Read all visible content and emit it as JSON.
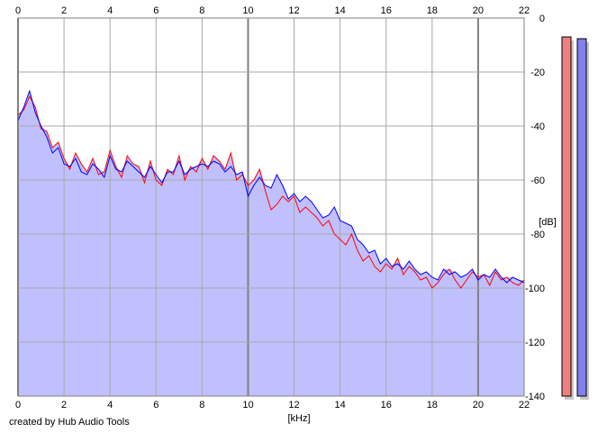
{
  "credit": "created by Hub Audio Tools",
  "chart_data": {
    "type": "area",
    "xlabel": "[kHz]",
    "ylabel": "[dB]",
    "xlim": [
      0,
      22
    ],
    "ylim": [
      -140,
      0
    ],
    "xticks": [
      0,
      2,
      4,
      6,
      8,
      10,
      12,
      14,
      16,
      18,
      20,
      22
    ],
    "yticks": [
      0,
      -20,
      -40,
      -60,
      -80,
      -100,
      -120,
      -140
    ],
    "grid": true,
    "fill_color": "#c0c0ff",
    "series": [
      {
        "color": "#ff0000",
        "x": [
          0,
          0.25,
          0.5,
          0.75,
          1,
          1.25,
          1.5,
          1.75,
          2,
          2.25,
          2.5,
          2.75,
          3,
          3.25,
          3.5,
          3.75,
          4,
          4.25,
          4.5,
          4.75,
          5,
          5.25,
          5.5,
          5.75,
          6,
          6.25,
          6.5,
          6.75,
          7,
          7.25,
          7.5,
          7.75,
          8,
          8.25,
          8.5,
          8.75,
          9,
          9.25,
          9.5,
          9.75,
          10,
          10.25,
          10.5,
          10.75,
          11,
          11.25,
          11.5,
          11.75,
          12,
          12.25,
          12.5,
          12.75,
          13,
          13.25,
          13.5,
          13.75,
          14,
          14.25,
          14.5,
          14.75,
          15,
          15.25,
          15.5,
          15.75,
          16,
          16.25,
          16.5,
          16.75,
          17,
          17.25,
          17.5,
          17.75,
          18,
          18.25,
          18.5,
          18.75,
          19,
          19.25,
          19.5,
          19.75,
          20,
          20.25,
          20.5,
          20.75,
          21,
          21.25,
          21.5,
          21.75,
          22
        ],
        "values": [
          -36,
          -34,
          -29,
          -33,
          -41,
          -42,
          -48,
          -46,
          -52,
          -56,
          -50,
          -54,
          -57,
          -52,
          -58,
          -57,
          -49,
          -55,
          -59,
          -51,
          -54,
          -55,
          -61,
          -53,
          -60,
          -62,
          -56,
          -58,
          -51,
          -60,
          -55,
          -57,
          -52,
          -56,
          -51,
          -53,
          -56,
          -50,
          -60,
          -58,
          -62,
          -60,
          -56,
          -64,
          -71,
          -69,
          -66,
          -68,
          -66,
          -72,
          -70,
          -72,
          -74,
          -77,
          -75,
          -80,
          -82,
          -84,
          -80,
          -86,
          -90,
          -88,
          -92,
          -94,
          -91,
          -93,
          -89,
          -95,
          -92,
          -94,
          -97,
          -96,
          -100,
          -98,
          -95,
          -93,
          -97,
          -100,
          -97,
          -94,
          -96,
          -95,
          -99,
          -94,
          -97,
          -96,
          -98,
          -99,
          -97
        ]
      },
      {
        "color": "#0000ff",
        "x": [
          0,
          0.25,
          0.5,
          0.75,
          1,
          1.25,
          1.5,
          1.75,
          2,
          2.25,
          2.5,
          2.75,
          3,
          3.25,
          3.5,
          3.75,
          4,
          4.25,
          4.5,
          4.75,
          5,
          5.25,
          5.5,
          5.75,
          6,
          6.25,
          6.5,
          6.75,
          7,
          7.25,
          7.5,
          7.75,
          8,
          8.25,
          8.5,
          8.75,
          9,
          9.25,
          9.5,
          9.75,
          10,
          10.25,
          10.5,
          10.75,
          11,
          11.25,
          11.5,
          11.75,
          12,
          12.25,
          12.5,
          12.75,
          13,
          13.25,
          13.5,
          13.75,
          14,
          14.25,
          14.5,
          14.75,
          15,
          15.25,
          15.5,
          15.75,
          16,
          16.25,
          16.5,
          16.75,
          17,
          17.25,
          17.5,
          17.75,
          18,
          18.25,
          18.5,
          18.75,
          19,
          19.25,
          19.5,
          19.75,
          20,
          20.25,
          20.5,
          20.75,
          21,
          21.25,
          21.5,
          21.75,
          22
        ],
        "values": [
          -38,
          -33,
          -27,
          -35,
          -40,
          -44,
          -50,
          -48,
          -54,
          -55,
          -52,
          -57,
          -58,
          -54,
          -56,
          -59,
          -51,
          -56,
          -57,
          -53,
          -55,
          -57,
          -59,
          -55,
          -58,
          -61,
          -57,
          -57,
          -53,
          -58,
          -56,
          -55,
          -54,
          -55,
          -53,
          -54,
          -57,
          -55,
          -58,
          -57,
          -66,
          -62,
          -59,
          -62,
          -63,
          -58,
          -62,
          -67,
          -65,
          -68,
          -66,
          -68,
          -71,
          -74,
          -73,
          -70,
          -75,
          -76,
          -77,
          -82,
          -84,
          -87,
          -86,
          -91,
          -89,
          -92,
          -91,
          -93,
          -90,
          -93,
          -95,
          -94,
          -96,
          -97,
          -93,
          -95,
          -94,
          -96,
          -95,
          -93,
          -97,
          -95,
          -96,
          -93,
          -96,
          -98,
          -96,
          -97,
          -98
        ]
      }
    ],
    "level_meters": [
      {
        "color": "#f08080",
        "level_fraction": 0.995
      },
      {
        "color": "#8080f0",
        "level_fraction": 0.99
      }
    ]
  }
}
